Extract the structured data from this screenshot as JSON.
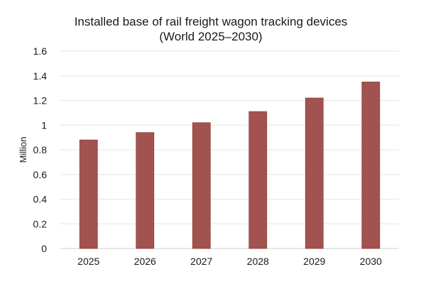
{
  "chart_data": {
    "type": "bar",
    "title": "Installed base of rail freight wagon tracking devices",
    "subtitle": "(World 2025–2030)",
    "xlabel": "",
    "ylabel": "Million",
    "categories": [
      "2025",
      "2026",
      "2027",
      "2028",
      "2029",
      "2030"
    ],
    "values": [
      0.88,
      0.94,
      1.02,
      1.11,
      1.22,
      1.35
    ],
    "ylim": [
      0,
      1.6
    ],
    "yticks": [
      0,
      0.2,
      0.4,
      0.6,
      0.8,
      1,
      1.2,
      1.4,
      1.6
    ],
    "ytick_labels": [
      "0",
      "0.2",
      "0.4",
      "0.6",
      "0.8",
      "1",
      "1.2",
      "1.4",
      "1.6"
    ],
    "grid": true,
    "legend": "none",
    "bar_color": "#a3534f",
    "bar_edge_color": "#8f423e"
  }
}
